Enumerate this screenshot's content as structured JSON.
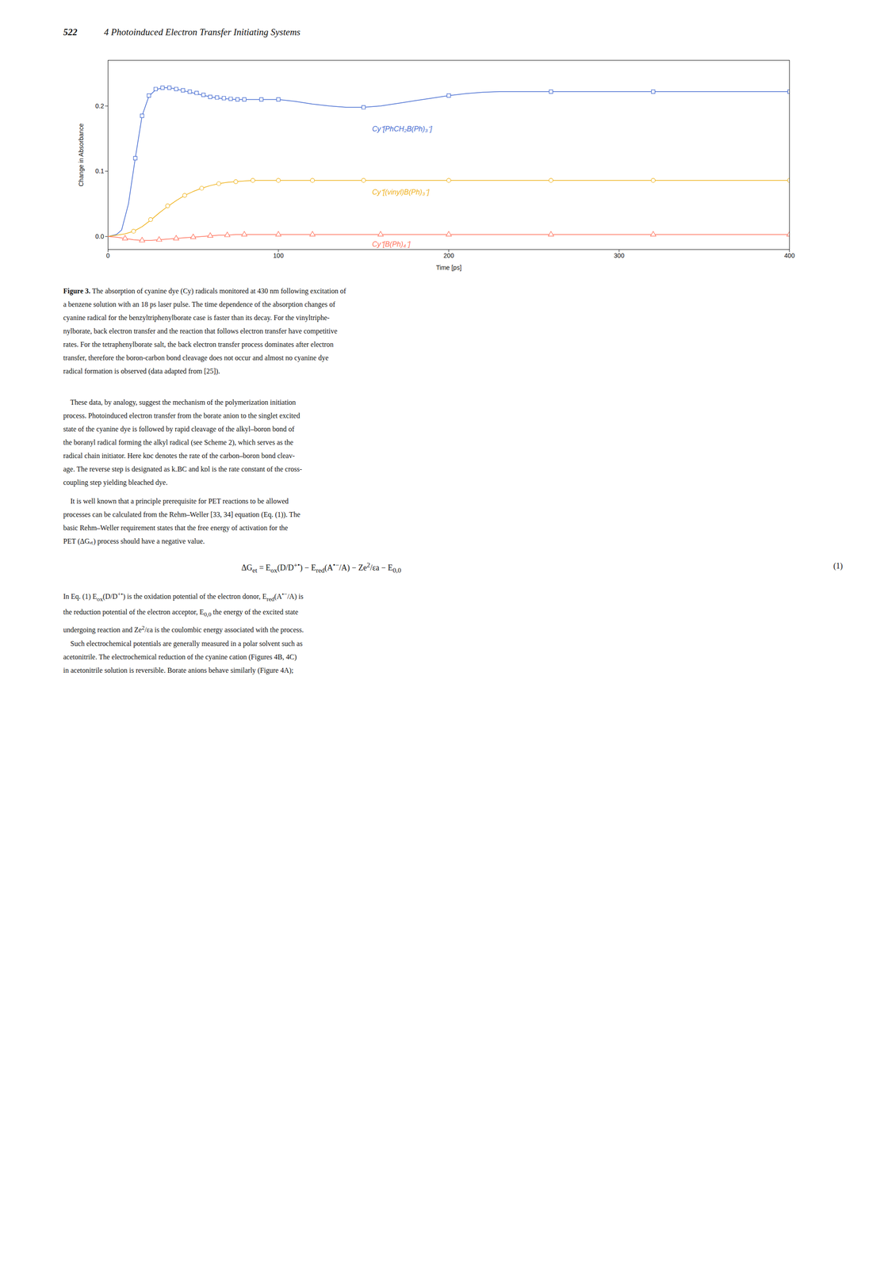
{
  "header": {
    "number": "522",
    "title": "4 Photoinduced Electron Transfer Initiating Systems"
  },
  "chart_data": {
    "type": "line",
    "xlabel": "Time [ps]",
    "ylabel": "Change in Absorbance",
    "xlim": [
      0,
      400
    ],
    "ylim": [
      -0.02,
      0.27
    ],
    "xticks": [
      0,
      100,
      200,
      300,
      400
    ],
    "yticks": [
      {
        "value": 0,
        "label": "0.0"
      },
      0.1,
      0.2
    ],
    "grid": false,
    "series": [
      {
        "name": "Cy⁺[PhCH₂B(Ph)₃⁻]",
        "marker": "square",
        "label_x": 155,
        "label_y": 0.165,
        "x": [
          0,
          5,
          8,
          12,
          16,
          20,
          24,
          28,
          32,
          36,
          40,
          45,
          50,
          55,
          60,
          65,
          70,
          75,
          80,
          85,
          90,
          95,
          100,
          110,
          120,
          130,
          140,
          150,
          160,
          170,
          180,
          190,
          200,
          210,
          220,
          230,
          240,
          250,
          260,
          270,
          280,
          290,
          300,
          320,
          340,
          360,
          380,
          400
        ],
        "values": [
          0.0,
          0.003,
          0.01,
          0.05,
          0.12,
          0.185,
          0.215,
          0.225,
          0.228,
          0.228,
          0.226,
          0.223,
          0.22,
          0.217,
          0.214,
          0.212,
          0.211,
          0.21,
          0.21,
          0.21,
          0.21,
          0.21,
          0.21,
          0.207,
          0.203,
          0.2,
          0.198,
          0.198,
          0.2,
          0.204,
          0.208,
          0.212,
          0.216,
          0.219,
          0.221,
          0.222,
          0.222,
          0.222,
          0.222,
          0.222,
          0.222,
          0.222,
          0.222,
          0.222,
          0.222,
          0.222,
          0.222,
          0.222
        ],
        "points_x": [
          16,
          20,
          24,
          28,
          32,
          36,
          40,
          44,
          48,
          52,
          56,
          60,
          64,
          68,
          72,
          76,
          80,
          90,
          100,
          150,
          200,
          260,
          320,
          400
        ],
        "points_values": [
          0.12,
          0.185,
          0.216,
          0.226,
          0.228,
          0.228,
          0.226,
          0.224,
          0.222,
          0.22,
          0.217,
          0.214,
          0.213,
          0.212,
          0.211,
          0.21,
          0.21,
          0.21,
          0.21,
          0.198,
          0.216,
          0.222,
          0.222,
          0.222
        ]
      },
      {
        "name": "Cy⁺[(vinyl)B(Ph)₃⁻]",
        "marker": "circle",
        "label_x": 155,
        "label_y": 0.068,
        "x": [
          0,
          5,
          10,
          15,
          20,
          25,
          30,
          35,
          40,
          45,
          50,
          55,
          60,
          65,
          70,
          75,
          80,
          85,
          90,
          95,
          100,
          110,
          120,
          130,
          140,
          150,
          160,
          180,
          200,
          220,
          240,
          260,
          280,
          300,
          320,
          340,
          360,
          380,
          400
        ],
        "values": [
          0.0,
          0.002,
          0.004,
          0.008,
          0.015,
          0.025,
          0.036,
          0.046,
          0.055,
          0.063,
          0.069,
          0.074,
          0.078,
          0.081,
          0.083,
          0.084,
          0.085,
          0.086,
          0.086,
          0.086,
          0.086,
          0.086,
          0.086,
          0.086,
          0.086,
          0.086,
          0.086,
          0.086,
          0.086,
          0.086,
          0.086,
          0.086,
          0.086,
          0.086,
          0.086,
          0.086,
          0.086,
          0.086,
          0.086
        ],
        "points_x": [
          15,
          25,
          35,
          45,
          55,
          65,
          75,
          85,
          100,
          120,
          150,
          200,
          260,
          320,
          400
        ],
        "points_values": [
          0.008,
          0.026,
          0.047,
          0.063,
          0.074,
          0.081,
          0.084,
          0.086,
          0.086,
          0.086,
          0.086,
          0.086,
          0.086,
          0.086,
          0.086
        ]
      },
      {
        "name": "Cy⁺[B(Ph)₄⁻]",
        "marker": "triangle",
        "label_x": 155,
        "label_y": -0.012,
        "x": [
          0,
          5,
          10,
          15,
          20,
          25,
          30,
          35,
          40,
          45,
          50,
          55,
          60,
          65,
          70,
          75,
          80,
          90,
          100,
          120,
          140,
          160,
          180,
          200,
          220,
          240,
          260,
          280,
          300,
          320,
          340,
          360,
          380,
          400
        ],
        "values": [
          0.0,
          -0.001,
          -0.003,
          -0.005,
          -0.006,
          -0.006,
          -0.005,
          -0.004,
          -0.003,
          -0.002,
          -0.001,
          0.0,
          0.001,
          0.002,
          0.002,
          0.003,
          0.003,
          0.003,
          0.003,
          0.003,
          0.003,
          0.003,
          0.003,
          0.003,
          0.003,
          0.003,
          0.003,
          0.003,
          0.003,
          0.003,
          0.003,
          0.003,
          0.003,
          0.003
        ],
        "points_x": [
          10,
          20,
          30,
          40,
          50,
          60,
          70,
          80,
          100,
          120,
          160,
          200,
          260,
          320,
          400
        ],
        "points_values": [
          -0.003,
          -0.006,
          -0.005,
          -0.003,
          -0.001,
          0.001,
          0.002,
          0.003,
          0.003,
          0.003,
          0.003,
          0.003,
          0.003,
          0.003,
          0.003
        ]
      }
    ]
  },
  "caption": {
    "label": "Figure 3.",
    "lines": [
      "The absorption of cyanine dye (Cy) radicals monitored at 430 nm following excitation of",
      "a benzene solution with an 18 ps laser pulse. The time dependence of the absorption changes of",
      "cyanine radical for the benzyltriphenylborate case is faster than its decay. For the vinyltriphe-",
      "nylborate, back electron transfer and the reaction that follows electron transfer have competitive",
      "rates. For the tetraphenylborate salt, the back electron transfer process dominates after electron",
      "transfer, therefore the boron-carbon bond cleavage does not occur and almost no cyanine dye",
      "radical formation is observed (data adapted from [25])."
    ]
  },
  "body": {
    "paragraphs_before": [
      [
        "    These data, by analogy, suggest the mechanism of the polymerization initiation",
        "process. Photoinduced electron transfer from the borate anion to the singlet excited",
        "state of the cyanine dye is followed by rapid cleavage of the alkyl–boron bond of",
        "the boranyl radical forming the alkyl radical (see Scheme 2), which serves as the",
        "radical chain initiator. Here kᴅc denotes the rate of the carbon–boron bond cleav-",
        "age. The reverse step is designated as k₋BC and kᴅl is the rate constant of the cross-",
        "coupling step yielding bleached dye."
      ],
      [
        "    It is well known that a principle prerequisite for PET reactions to be allowed",
        "processes can be calculated from the Rehm–Weller [33, 34] equation (Eq. (1)). The",
        "basic Rehm–Weller requirement states that the free energy of activation for the",
        "PET (ΔGₑₜ) process should have a negative value."
      ]
    ],
    "equation": {
      "formula": [
        "ΔG",
        {
          "sub": "et"
        },
        " = E",
        {
          "sub": "ox"
        },
        "(D/D",
        {
          "sup": "+•"
        },
        ") − E",
        {
          "sub": "red"
        },
        "(A",
        {
          "sup": "•−"
        },
        "/A) − Ze",
        {
          "sup": "2"
        },
        "/εa − E",
        {
          "sub": "0,0"
        }
      ],
      "number": "(1)"
    },
    "paragraphs_after": [
      [
        [
          "In Eq. (1) E",
          {
            "sub": "ox"
          },
          "(D/D",
          {
            "sup": "+•"
          },
          ") is the oxidation potential of the electron donor, E",
          {
            "sub": "red"
          },
          "(A",
          {
            "sup": "•−"
          },
          "/A) is"
        ],
        [
          "the reduction potential of the electron acceptor, E",
          {
            "sub": "0,0"
          },
          " the energy of the excited state"
        ],
        [
          "undergoing reaction and Ze",
          {
            "sup": "2"
          },
          "/εa is the coulombic energy associated with the process."
        ],
        "    Such electrochemical potentials are generally measured in a polar solvent such as",
        "acetonitrile. The electrochemical reduction of the cyanine cation (Figures 4B, 4C)",
        "in acetonitrile solution is reversible. Borate anions behave similarly (Figure 4A);"
      ]
    ]
  }
}
